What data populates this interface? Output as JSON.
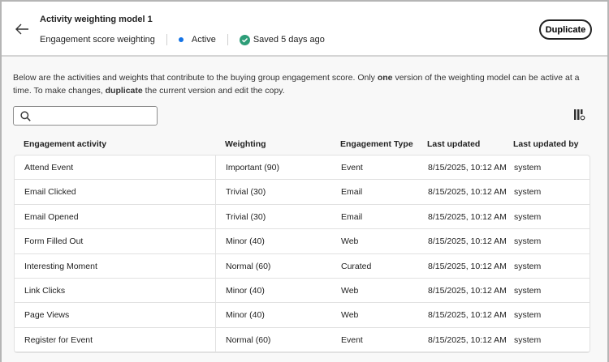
{
  "header": {
    "title": "Activity weighting model 1",
    "subtitle": "Engagement score weighting",
    "status": "Active",
    "saved": "Saved 5 days ago",
    "duplicate_label": "Duplicate"
  },
  "description": {
    "part1": "Below are the activities and weights that contribute to the buying group engagement score. Only ",
    "bold1": "one",
    "part2": " version of the weighting model can be active at a time. To make changes, ",
    "bold2": "duplicate",
    "part3": " the current version and edit the copy."
  },
  "search": {
    "placeholder": "",
    "value": ""
  },
  "colors": {
    "active": "#1473e6",
    "saved": "#2d9d78"
  },
  "table": {
    "columns": [
      "Engagement activity",
      "Weighting",
      "Engagement Type",
      "Last updated",
      "Last updated by"
    ],
    "rows": [
      [
        "Attend Event",
        "Important (90)",
        "Event",
        "8/15/2025, 10:12 AM",
        "system"
      ],
      [
        "Email Clicked",
        "Trivial (30)",
        "Email",
        "8/15/2025, 10:12 AM",
        "system"
      ],
      [
        "Email Opened",
        "Trivial (30)",
        "Email",
        "8/15/2025, 10:12 AM",
        "system"
      ],
      [
        "Form Filled Out",
        "Minor (40)",
        "Web",
        "8/15/2025, 10:12 AM",
        "system"
      ],
      [
        "Interesting Moment",
        "Normal (60)",
        "Curated",
        "8/15/2025, 10:12 AM",
        "system"
      ],
      [
        "Link Clicks",
        "Minor (40)",
        "Web",
        "8/15/2025, 10:12 AM",
        "system"
      ],
      [
        "Page Views",
        "Minor (40)",
        "Web",
        "8/15/2025, 10:12 AM",
        "system"
      ],
      [
        "Register for Event",
        "Normal (60)",
        "Event",
        "8/15/2025, 10:12 AM",
        "system"
      ]
    ]
  }
}
